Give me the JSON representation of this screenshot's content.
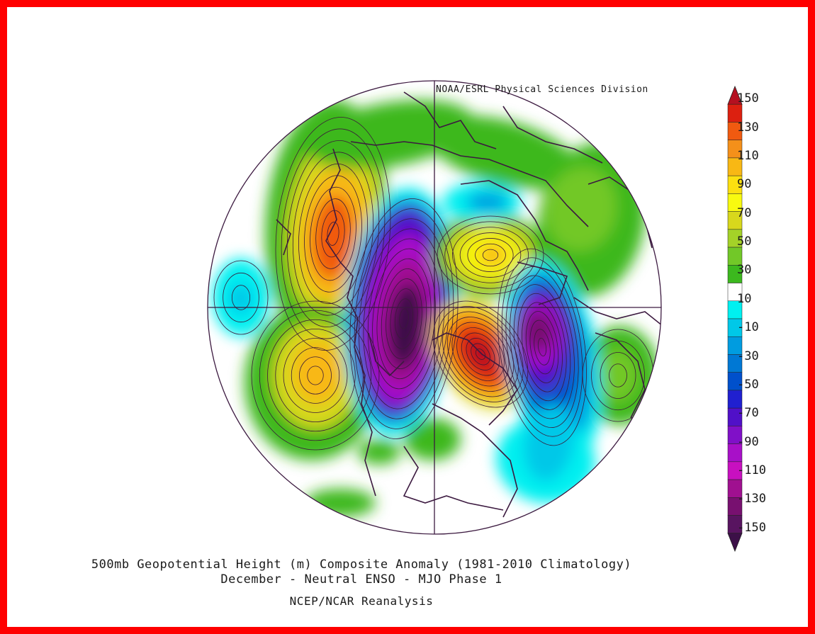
{
  "header": {
    "credit": "NOAA/ESRL Physical Sciences Division"
  },
  "footer": {
    "title_line1": "500mb Geopotential Height (m) Composite Anomaly (1981-2010 Climatology)",
    "title_line2": "December - Neutral ENSO - MJO Phase 1",
    "source": "NCEP/NCAR Reanalysis"
  },
  "colorbar": {
    "labels": [
      "150",
      "130",
      "110",
      "90",
      "70",
      "50",
      "30",
      "10",
      "-10",
      "-30",
      "-50",
      "-70",
      "-90",
      "-110",
      "-130",
      "-150"
    ],
    "colors": [
      "#b51020",
      "#dc2010",
      "#f05a10",
      "#f4901a",
      "#f8b814",
      "#fce010",
      "#f8fa10",
      "#d8d81c",
      "#a4d228",
      "#72c828",
      "#3cb81e",
      "#ffffff",
      "#00f0f0",
      "#00c8e8",
      "#009ce0",
      "#0078d4",
      "#0050cc",
      "#2020d0",
      "#5010c8",
      "#8010c8",
      "#a810c8",
      "#c810c0",
      "#a01090",
      "#781070",
      "#581460",
      "#3c1048"
    ],
    "units": "m"
  },
  "map_data": {
    "projection": "north-polar-stereographic",
    "field": "500mb geopotential height anomaly",
    "anomalies": [
      {
        "region": "Alaska / NE Pacific",
        "sign": "positive",
        "max": 120
      },
      {
        "region": "Central North Pacific",
        "sign": "positive",
        "max": 80
      },
      {
        "region": "Eastern Siberia / Arctic",
        "sign": "negative",
        "min": -150
      },
      {
        "region": "Greenland / Scandinavia",
        "sign": "positive",
        "max": 140
      },
      {
        "region": "Central Asia",
        "sign": "positive",
        "max": 80
      },
      {
        "region": "NW Russia / Urals",
        "sign": "negative",
        "min": -130
      },
      {
        "region": "Eastern North Atlantic",
        "sign": "negative",
        "min": -60
      },
      {
        "region": "Europe",
        "sign": "positive",
        "max": 30
      }
    ]
  }
}
